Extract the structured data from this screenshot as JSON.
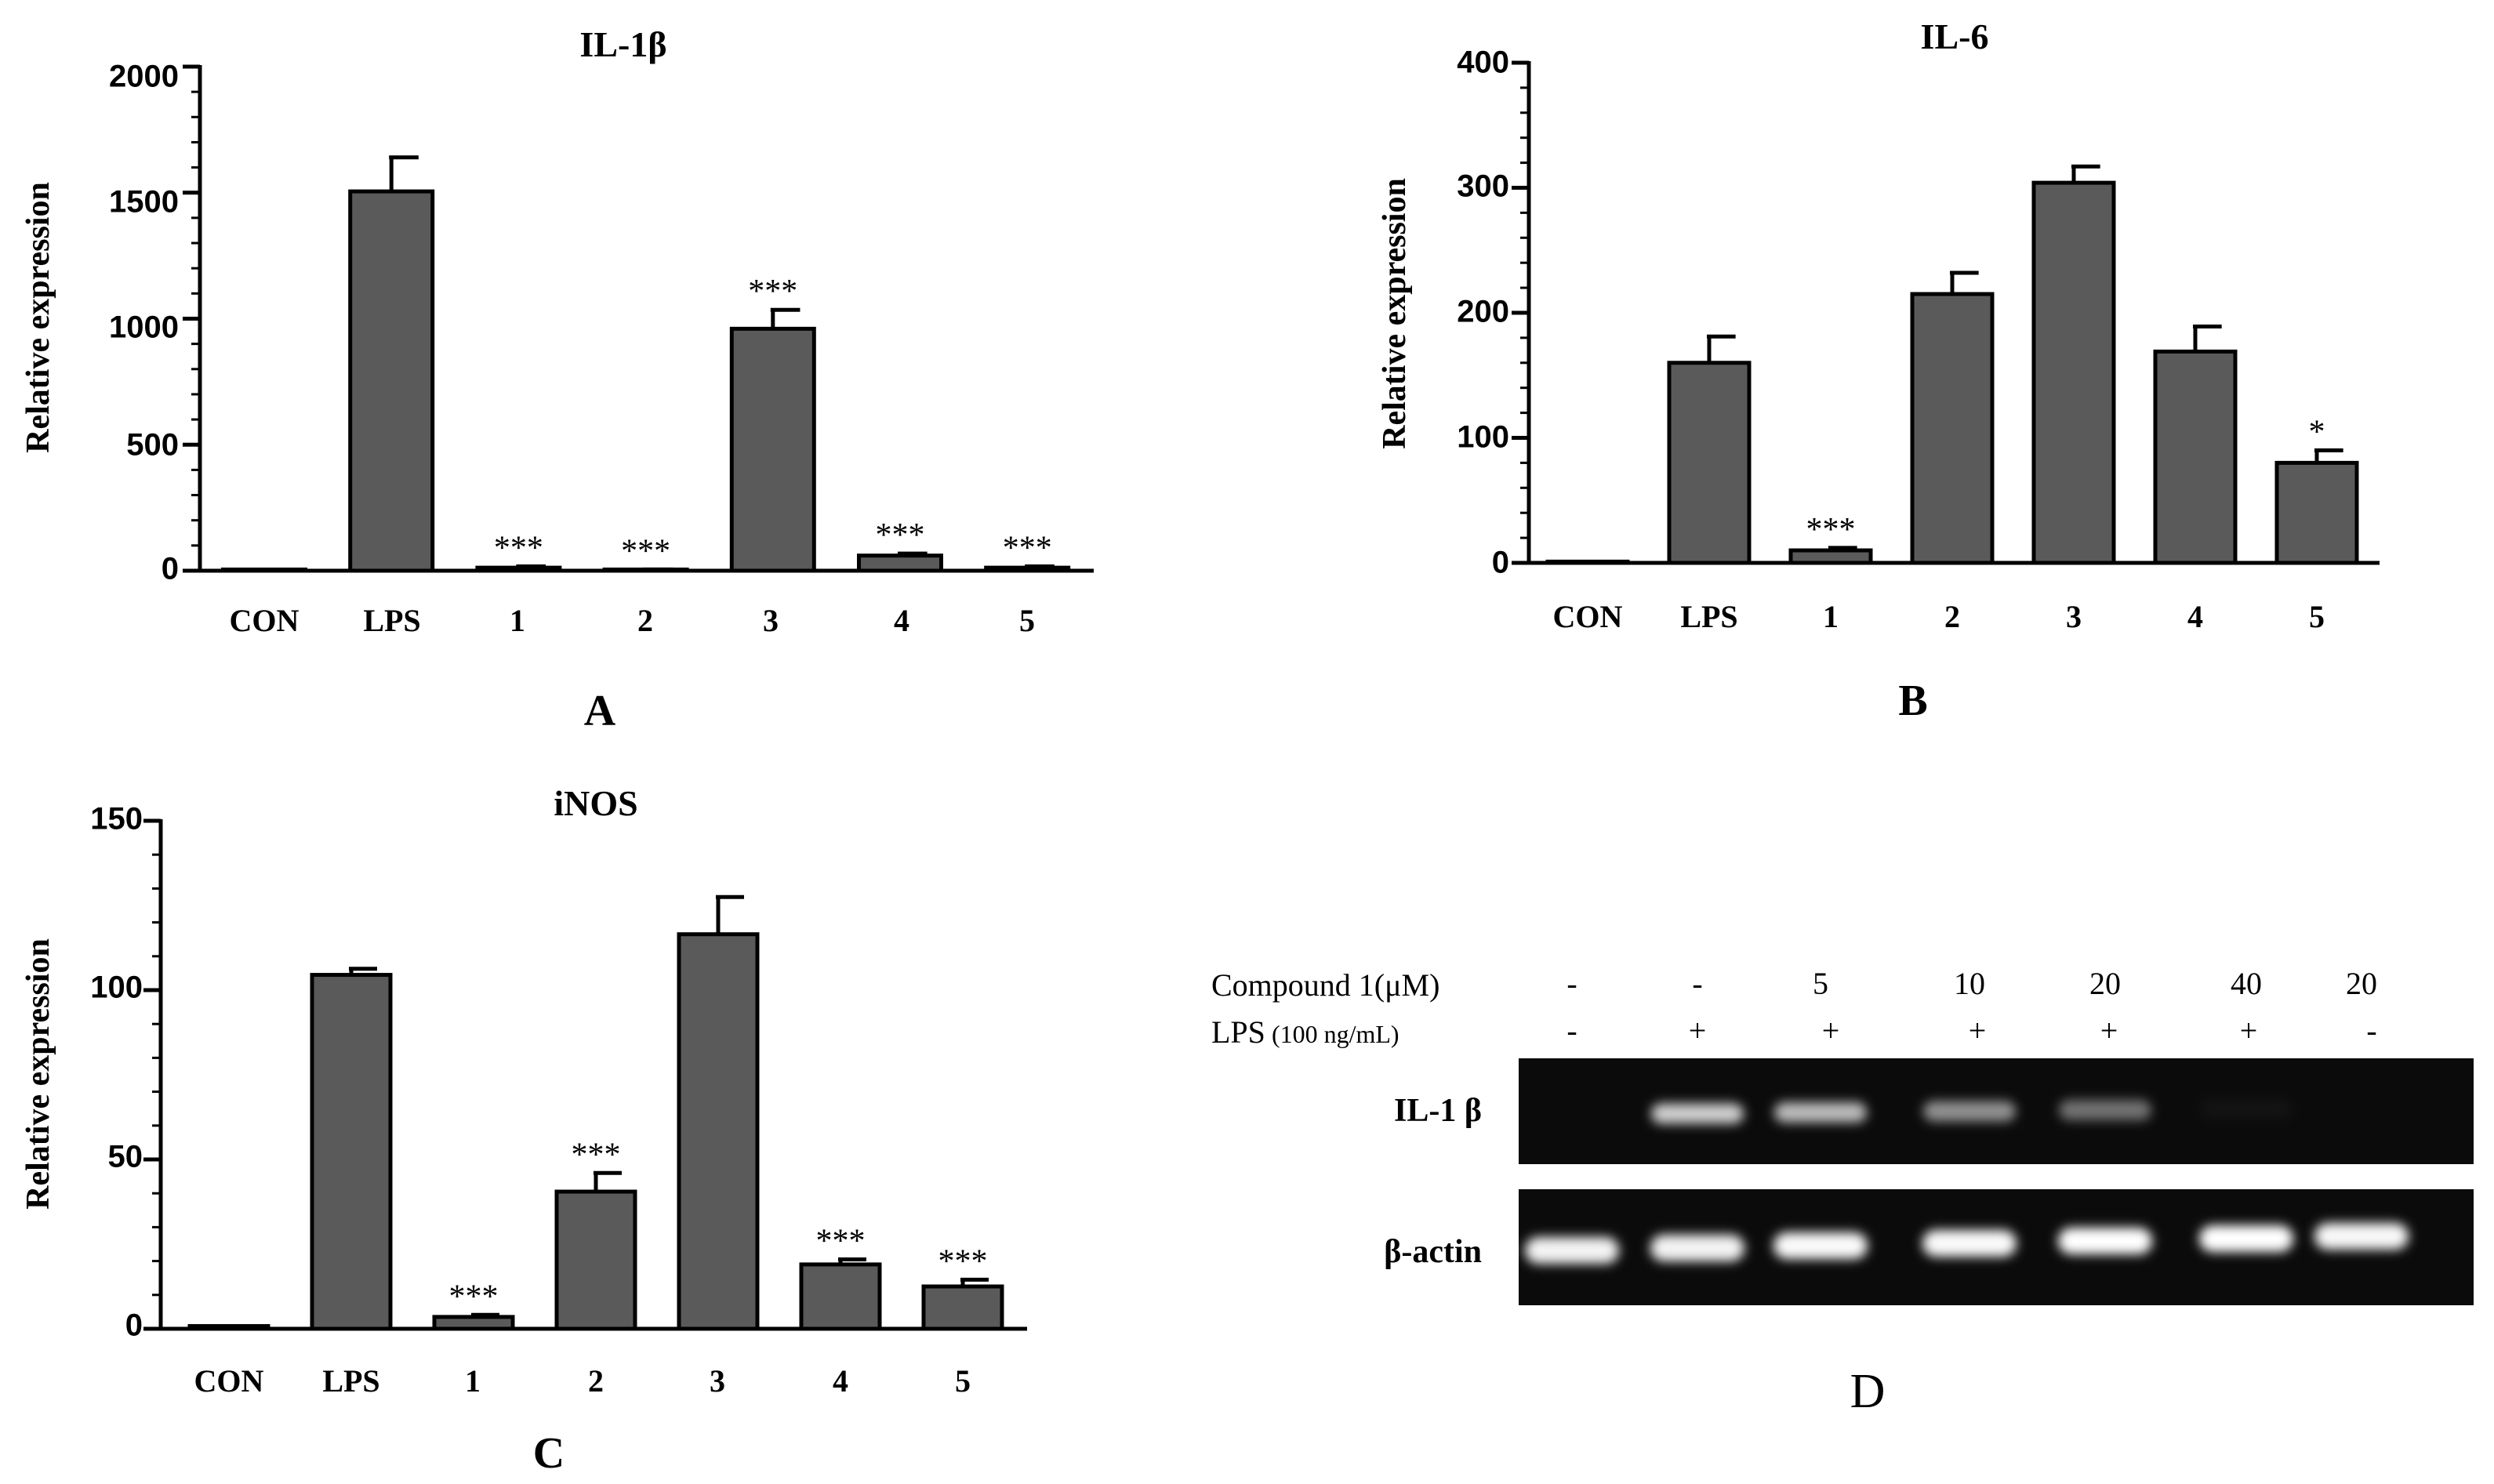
{
  "chart_data": [
    {
      "type": "bar",
      "panel_label": "A",
      "title": "IL-1β",
      "ylabel": "Relative expression",
      "xlabel": "",
      "ylim": [
        0,
        2000
      ],
      "yticks": [
        "0",
        "500",
        "1000",
        "1500",
        "2000"
      ],
      "categories": [
        "CON",
        "LPS",
        "1",
        "2",
        "3",
        "4",
        "5"
      ],
      "values": [
        1,
        1505,
        12,
        3,
        960,
        60,
        12
      ],
      "errors": [
        0,
        135,
        5,
        2,
        75,
        8,
        5
      ],
      "significance": [
        "",
        "",
        "***",
        "***",
        "***",
        "***",
        "***"
      ],
      "grid": false,
      "bar_color": "#5a5a5a"
    },
    {
      "type": "bar",
      "panel_label": "B",
      "title": "IL-6",
      "ylabel": "Relative expression",
      "xlabel": "",
      "ylim": [
        0,
        400
      ],
      "yticks": [
        "0",
        "100",
        "200",
        "300",
        "400"
      ],
      "categories": [
        "CON",
        "LPS",
        "1",
        "2",
        "3",
        "4",
        "5"
      ],
      "values": [
        1,
        160,
        10,
        215,
        304,
        169,
        80
      ],
      "errors": [
        0,
        21,
        2,
        17,
        13,
        20,
        10
      ],
      "significance": [
        "",
        "",
        "***",
        "",
        "",
        "",
        "*"
      ],
      "grid": false,
      "bar_color": "#5a5a5a"
    },
    {
      "type": "bar",
      "panel_label": "C",
      "title": "iNOS",
      "ylabel": "Relative expression",
      "xlabel": "",
      "ylim": [
        0,
        150
      ],
      "yticks": [
        "0",
        "50",
        "100",
        "150"
      ],
      "categories": [
        "CON",
        "LPS",
        "1",
        "2",
        "3",
        "4",
        "5"
      ],
      "values": [
        0.8,
        104.5,
        3.5,
        40.5,
        116.5,
        19,
        12.5
      ],
      "errors": [
        0,
        1.8,
        0.6,
        5.5,
        11,
        1.5,
        2
      ],
      "significance": [
        "",
        "",
        "***",
        "***",
        "",
        "***",
        "***"
      ],
      "grid": false,
      "bar_color": "#5a5a5a"
    }
  ],
  "gel": {
    "panel_label": "D",
    "compound_label": "Compound 1(μM)",
    "lps_label_main": "LPS",
    "lps_label_unit": "(100 ng/mL)",
    "compound_values": [
      "-",
      "-",
      "5",
      "10",
      "20",
      "40",
      "20"
    ],
    "lps_values": [
      "-",
      "+",
      "+",
      "+",
      "+",
      "+",
      "-"
    ],
    "rows": [
      {
        "label": "IL-1 β",
        "band_intensity": [
          0.0,
          0.8,
          0.72,
          0.55,
          0.42,
          0.03,
          0.0
        ]
      },
      {
        "label": "β-actin",
        "band_intensity": [
          0.95,
          0.95,
          0.98,
          0.98,
          1.0,
          1.0,
          0.97
        ]
      }
    ],
    "background_color": "#0b0b0b",
    "band_color": "#ffffff"
  }
}
